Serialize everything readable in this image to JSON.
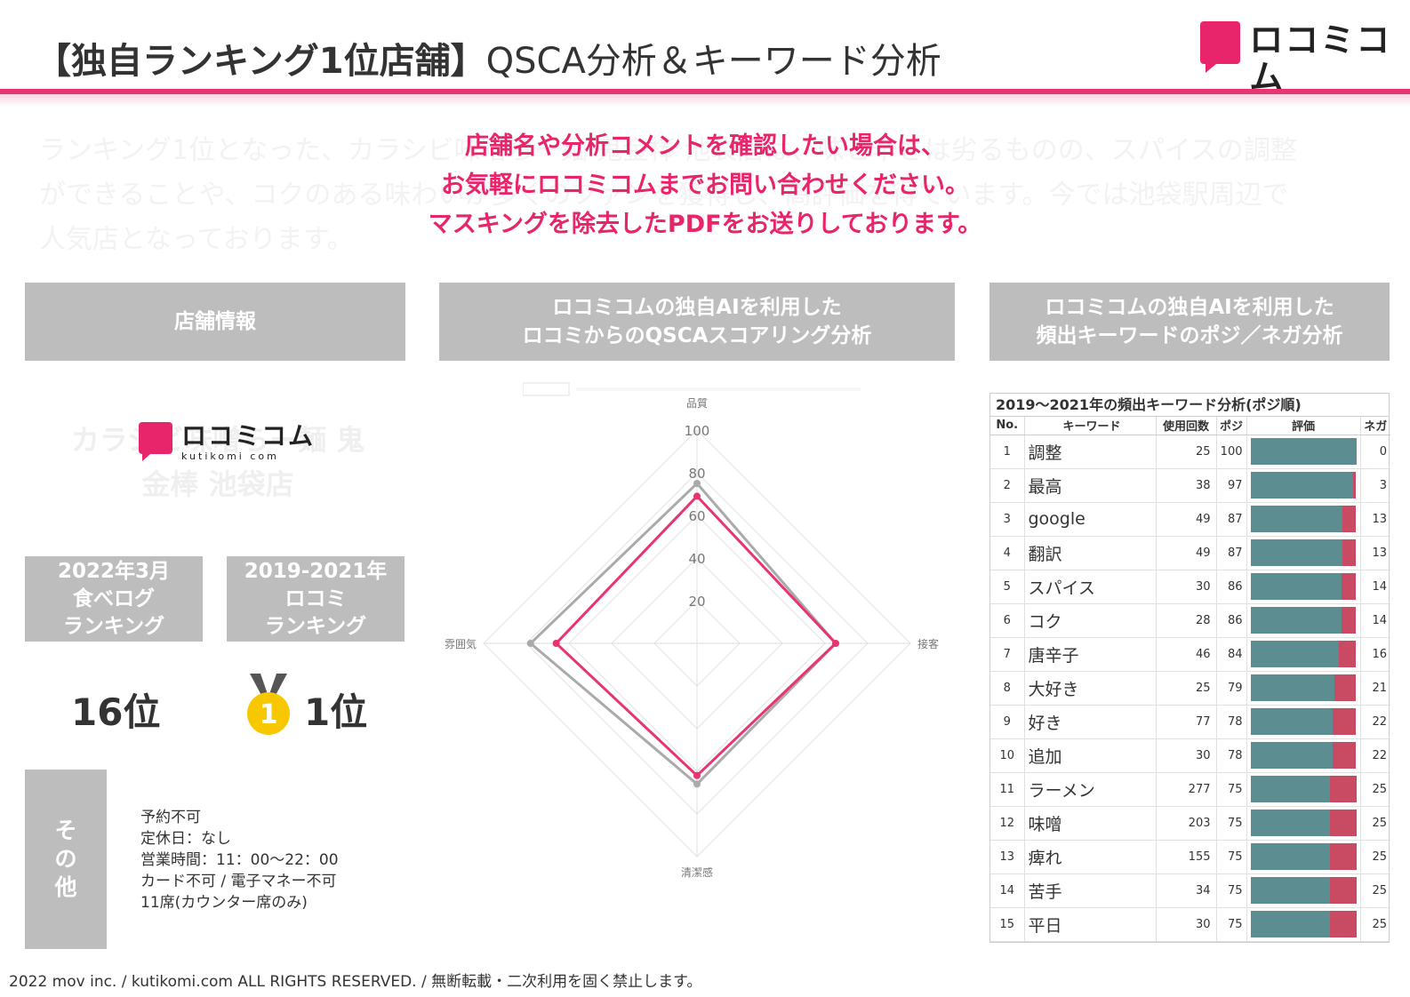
{
  "header": {
    "title_bold": "【独自ランキング1位店舗】",
    "title_rest": "QSCA分析＆キーワード分析"
  },
  "logo": {
    "jp": "ロコミコム",
    "en": "kutikomi com",
    "color": "#e8246b"
  },
  "intro_masked": "ランキング1位となった、カラシビ味噌らー麺 鬼金棒 池袋店は、味と辛さは劣るものの、スパイスの調整ができることや、コクのある味わいが多くのファンを獲得し、高評価を得ています。今では池袋駅周辺で人気店となっております。",
  "notice": {
    "line1": "店舗名や分析コメントを確認したい場合は、",
    "line2": "お気軽にロコミコムまでお問い合わせください。",
    "line3": "マスキングを除去したPDFをお送りしております。"
  },
  "sections": {
    "store": "店舗情報",
    "qsca_l1": "ロコミコムの独自AIを利用した",
    "qsca_l2": "ロコミからのQSCAスコアリング分析",
    "kw_l1": "ロコミコムの独自AIを利用した",
    "kw_l2": "頻出キーワードのポジ／ネガ分析"
  },
  "store": {
    "name_masked_l1": "カラシビ味噌らー麺 鬼",
    "name_masked_l2": "金棒 池袋店",
    "rank1": {
      "l1": "2022年3月",
      "l2": "食べログ",
      "l3": "ランキング",
      "value": "16位"
    },
    "rank2": {
      "l1": "2019-2021年",
      "l2": "ロコミ",
      "l3": "ランキング",
      "value": "1位",
      "medal": "1"
    },
    "other_label": [
      "そ",
      "の",
      "他"
    ],
    "other": [
      "予約不可",
      "定休日：なし",
      "営業時間：11：00〜22：00",
      "カード不可 / 電子マネー不可",
      "11席(カウンター席のみ)"
    ]
  },
  "chart_data": [
    {
      "type": "radar",
      "axes": [
        "品質",
        "接客",
        "清潔感",
        "雰囲気"
      ],
      "rlim": [
        0,
        100
      ],
      "ticks": [
        20,
        40,
        60,
        80,
        100
      ],
      "series": [
        {
          "values": [
            69,
            65,
            62,
            66
          ],
          "color": "#e8346f"
        },
        {
          "values": [
            75,
            65,
            66,
            78
          ],
          "color": "#aaaaaa"
        }
      ]
    },
    {
      "type": "table",
      "title": "2019〜2021年の頻出キーワード分析(ポジ順)",
      "columns": [
        "No.",
        "キーワード",
        "使用回数",
        "ポジ",
        "評価",
        "ネガ"
      ],
      "colors": {
        "pos": "#5b8d91",
        "neg": "#c94b63"
      },
      "rows": [
        {
          "no": "1",
          "kw": "調整",
          "count": "25",
          "pos": "100",
          "neg": "0"
        },
        {
          "no": "2",
          "kw": "最高",
          "count": "38",
          "pos": "97",
          "neg": "3"
        },
        {
          "no": "3",
          "kw": "google",
          "count": "49",
          "pos": "87",
          "neg": "13"
        },
        {
          "no": "4",
          "kw": "翻訳",
          "count": "49",
          "pos": "87",
          "neg": "13"
        },
        {
          "no": "5",
          "kw": "スパイス",
          "count": "30",
          "pos": "86",
          "neg": "14"
        },
        {
          "no": "6",
          "kw": "コク",
          "count": "28",
          "pos": "86",
          "neg": "14"
        },
        {
          "no": "7",
          "kw": "唐辛子",
          "count": "46",
          "pos": "84",
          "neg": "16"
        },
        {
          "no": "8",
          "kw": "大好き",
          "count": "25",
          "pos": "79",
          "neg": "21"
        },
        {
          "no": "9",
          "kw": "好き",
          "count": "77",
          "pos": "78",
          "neg": "22"
        },
        {
          "no": "10",
          "kw": "追加",
          "count": "30",
          "pos": "78",
          "neg": "22"
        },
        {
          "no": "11",
          "kw": "ラーメン",
          "count": "277",
          "pos": "75",
          "neg": "25"
        },
        {
          "no": "12",
          "kw": "味噌",
          "count": "203",
          "pos": "75",
          "neg": "25"
        },
        {
          "no": "13",
          "kw": "痺れ",
          "count": "155",
          "pos": "75",
          "neg": "25"
        },
        {
          "no": "14",
          "kw": "苦手",
          "count": "34",
          "pos": "75",
          "neg": "25"
        },
        {
          "no": "15",
          "kw": "平日",
          "count": "30",
          "pos": "75",
          "neg": "25"
        }
      ]
    }
  ],
  "footer": "2022 mov inc. / kutikomi.com ALL RIGHTS RESERVED. / 無断転載・二次利用を固く禁止します。"
}
